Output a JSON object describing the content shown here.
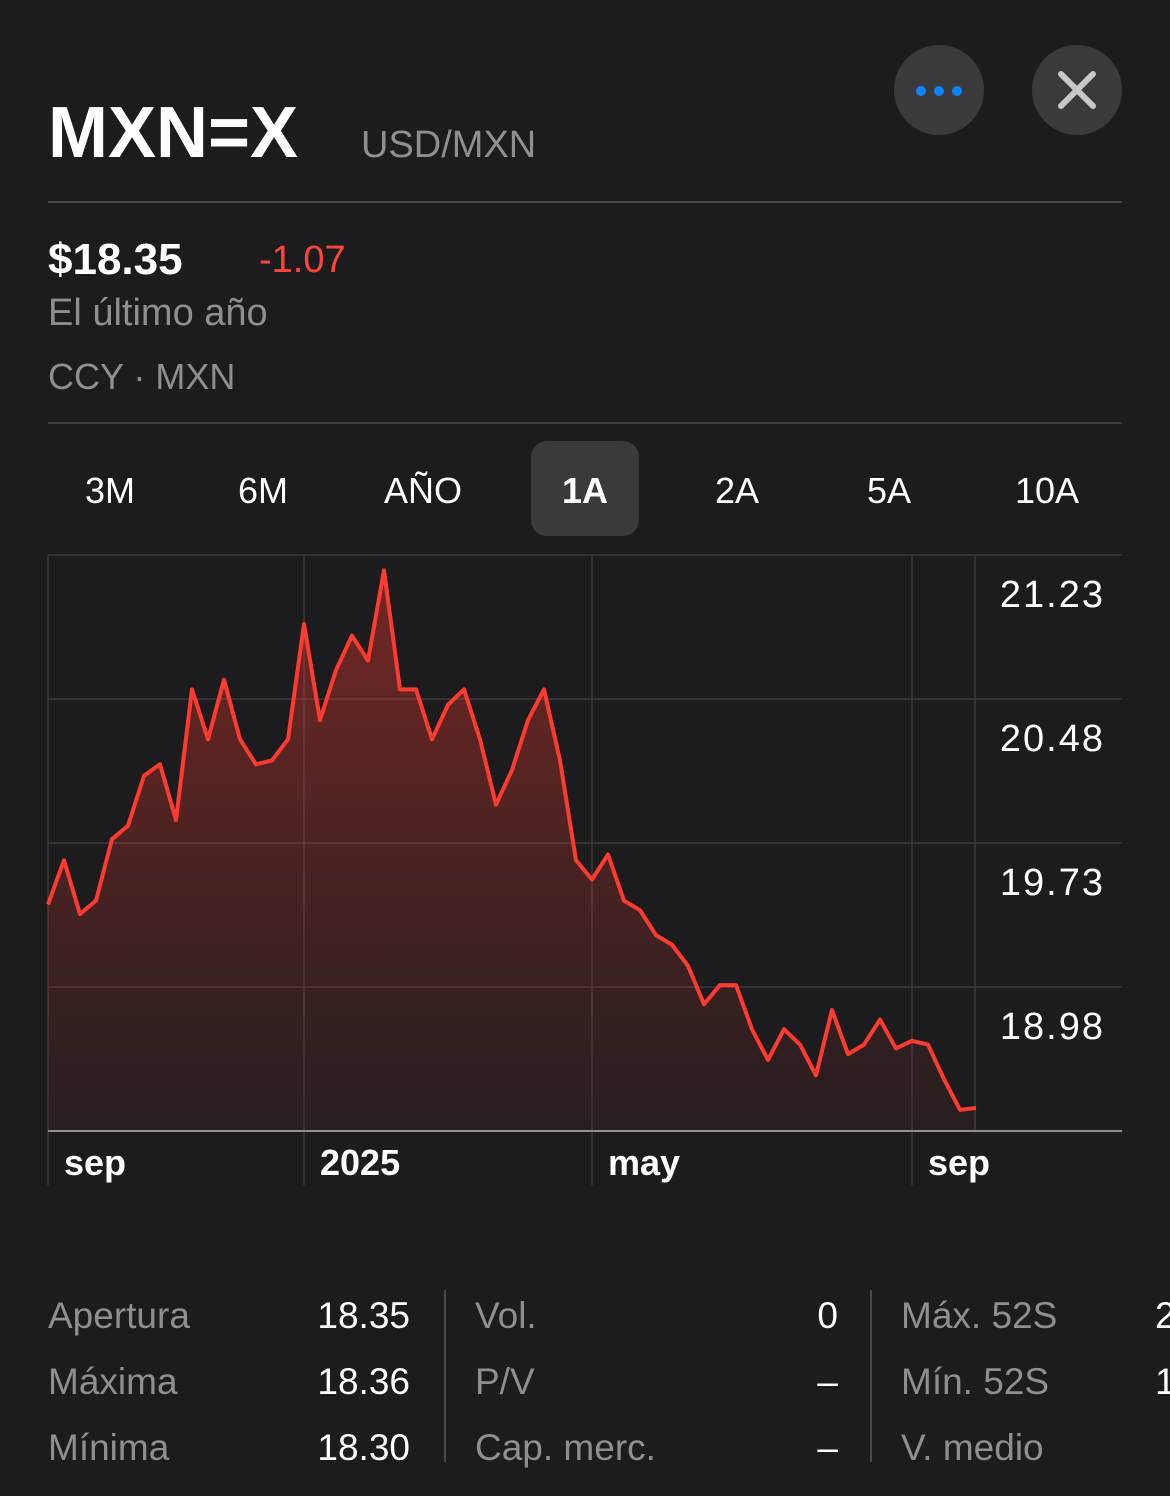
{
  "header": {
    "title": "MXN=X",
    "subtitle": "USD/MXN"
  },
  "quote": {
    "price": "$18.35",
    "change": "-1.07",
    "period": "El último año",
    "exchange": "CCY · MXN"
  },
  "tabs": {
    "items": [
      "3M",
      "6M",
      "AÑO",
      "1A",
      "2A",
      "5A",
      "10A"
    ],
    "selected": 3
  },
  "chart_data": {
    "type": "line",
    "color": "#ff3b30",
    "categories": [
      "sep",
      null,
      null,
      null,
      null,
      null,
      null,
      null,
      null,
      null,
      null,
      null,
      null,
      null,
      null,
      null,
      "2025",
      null,
      null,
      null,
      null,
      null,
      null,
      null,
      null,
      null,
      null,
      null,
      null,
      null,
      null,
      null,
      null,
      null,
      "may",
      null,
      null,
      null,
      null,
      null,
      null,
      null,
      null,
      null,
      null,
      null,
      null,
      null,
      null,
      null,
      null,
      null,
      null,
      null,
      "sep",
      null,
      null,
      null,
      null
    ],
    "values": [
      19.41,
      19.64,
      19.36,
      19.43,
      19.75,
      19.82,
      20.08,
      20.14,
      19.85,
      20.53,
      20.27,
      20.58,
      20.27,
      20.14,
      20.16,
      20.27,
      20.87,
      20.37,
      20.63,
      20.81,
      20.68,
      21.15,
      20.53,
      20.53,
      20.27,
      20.45,
      20.53,
      20.27,
      19.93,
      20.11,
      20.37,
      20.53,
      20.16,
      19.64,
      19.54,
      19.67,
      19.43,
      19.38,
      19.25,
      19.2,
      19.09,
      18.89,
      18.99,
      18.99,
      18.76,
      18.6,
      18.76,
      18.68,
      18.52,
      18.86,
      18.63,
      18.68,
      18.81,
      18.66,
      18.7,
      18.68,
      18.5,
      18.34,
      18.35
    ],
    "ylim": [
      18.23,
      21.23
    ],
    "yticks": [
      21.23,
      20.48,
      19.73,
      18.98
    ],
    "grid": true
  },
  "stats": {
    "columns": [
      [
        [
          "Apertura",
          "18.35"
        ],
        [
          "Máxima",
          "18.36"
        ],
        [
          "Mínima",
          "18.30"
        ]
      ],
      [
        [
          "Vol.",
          "0"
        ],
        [
          "P/V",
          "–"
        ],
        [
          "Cap. merc.",
          "–"
        ]
      ],
      [
        [
          "Máx. 52S",
          "2"
        ],
        [
          "Mín. 52S",
          "1"
        ],
        [
          "V. medio",
          ""
        ]
      ]
    ]
  }
}
